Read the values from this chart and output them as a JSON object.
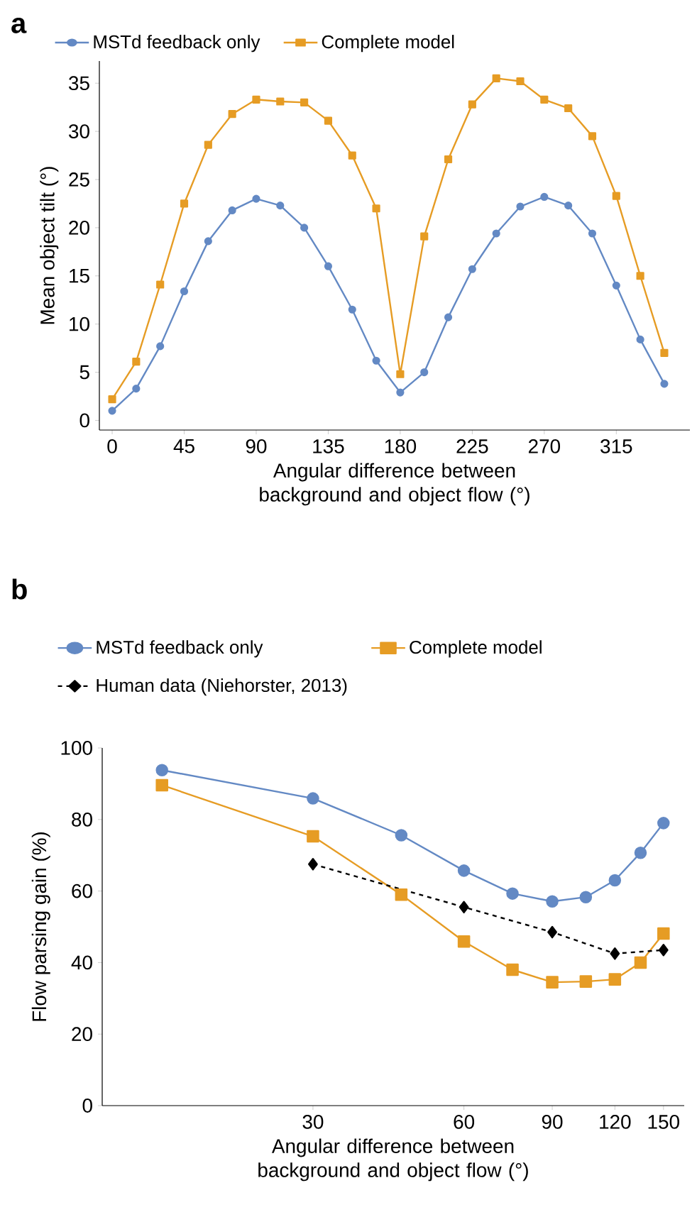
{
  "chart_data": [
    {
      "type": "line",
      "title": "a",
      "xlabel": "Angular difference between background and object flow (°)",
      "ylabel": "Mean object tilt (°)",
      "x": [
        0,
        15,
        30,
        45,
        60,
        75,
        90,
        105,
        120,
        135,
        150,
        165,
        180,
        195,
        210,
        225,
        240,
        255,
        270,
        285,
        300,
        315,
        330,
        345
      ],
      "series": [
        {
          "name": "MSTd feedback only",
          "color": "#6389c4",
          "marker": "circle",
          "line_style": "solid",
          "values": [
            1.0,
            3.3,
            7.7,
            13.4,
            18.6,
            21.8,
            23.0,
            22.3,
            20.0,
            16.0,
            11.5,
            6.2,
            2.9,
            5.0,
            10.7,
            15.7,
            19.4,
            22.2,
            23.2,
            22.3,
            19.4,
            14.0,
            8.4,
            3.8
          ]
        },
        {
          "name": "Complete model",
          "color": "#e69c24",
          "marker": "square",
          "line_style": "solid",
          "values": [
            2.2,
            6.1,
            14.1,
            22.5,
            28.6,
            31.8,
            33.3,
            33.1,
            33.0,
            31.1,
            27.5,
            22.0,
            4.8,
            19.1,
            27.1,
            32.8,
            35.5,
            35.2,
            33.3,
            32.4,
            29.5,
            23.3,
            15.0,
            7.0
          ]
        }
      ],
      "xlim": [
        -8,
        361
      ],
      "ylim": [
        -1,
        37.3
      ],
      "xticks": [
        0,
        45,
        90,
        135,
        180,
        225,
        270,
        315
      ],
      "yticks": [
        0,
        5,
        10,
        15,
        20,
        25,
        30,
        35
      ],
      "legend": "top"
    },
    {
      "type": "line",
      "title": "b",
      "xlabel": "Angular difference between background and object flow (°)",
      "ylabel": "Flow parsing gain (%)",
      "x": [
        15,
        30,
        45,
        60,
        75,
        90,
        105,
        120,
        135,
        150
      ],
      "series": [
        {
          "name": "MSTd feedback only",
          "color": "#6389c4",
          "marker": "circle",
          "line_style": "solid",
          "values": [
            93.8,
            85.9,
            75.6,
            65.7,
            59.3,
            57.1,
            58.3,
            63.0,
            70.7,
            79.0
          ]
        },
        {
          "name": "Complete model",
          "color": "#e69c24",
          "marker": "square",
          "line_style": "solid",
          "values": [
            89.6,
            75.3,
            59.0,
            45.9,
            38.0,
            34.5,
            34.7,
            35.3,
            40.0,
            48.1
          ]
        },
        {
          "name": "Human data (Niehorster, 2013)",
          "color": "#000000",
          "marker": "diamond",
          "line_style": "dashed",
          "x": [
            30,
            60,
            90,
            120,
            150
          ],
          "values": [
            67.5,
            55.5,
            48.5,
            42.5,
            43.5
          ]
        }
      ],
      "log": "x",
      "xlim": [
        11.4,
        165
      ],
      "ylim": [
        0,
        100
      ],
      "xticks": [
        30,
        60,
        90,
        120,
        150
      ],
      "yticks": [
        0,
        20,
        40,
        60,
        80,
        100
      ],
      "legend": "top"
    }
  ]
}
